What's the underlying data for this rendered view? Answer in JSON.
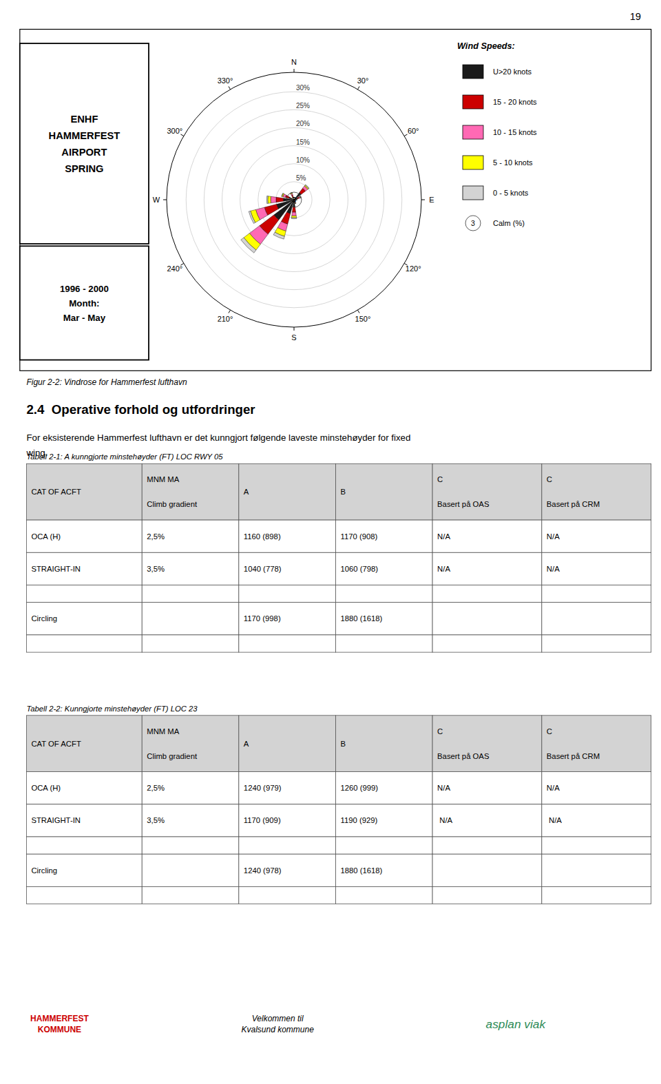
{
  "chart_data": {
    "type": "windrose",
    "title": "ENHF\nHAMMERFEST\nAIRPORT\nSPRING",
    "subtitle": "1996 - 2000\nMonth:\nMar - May",
    "x": [
      45,
      67.5,
      90,
      157.5,
      180,
      202.5,
      225,
      247.5,
      270,
      292.5,
      337.5
    ],
    "xlim": [
      0,
      360
    ],
    "xticks": [
      {
        "value": 0,
        "label": "N"
      },
      {
        "value": 30,
        "label": "30°"
      },
      {
        "value": 60,
        "label": "60°"
      },
      {
        "value": 90,
        "label": "E"
      },
      {
        "value": 120,
        "label": "120°"
      },
      {
        "value": 150,
        "label": "150°"
      },
      {
        "value": 180,
        "label": "S"
      },
      {
        "value": 210,
        "label": "210°"
      },
      {
        "value": 240,
        "label": "240°"
      },
      {
        "value": 270,
        "label": "W"
      },
      {
        "value": 300,
        "label": "300°"
      },
      {
        "value": 330,
        "label": "330°"
      }
    ],
    "ylim": [
      0,
      35.4
    ],
    "yticks": [
      {
        "value": 5,
        "label": "5%"
      },
      {
        "value": 10,
        "label": "10%"
      },
      {
        "value": 15,
        "label": "15%"
      },
      {
        "value": 20,
        "label": "20%"
      },
      {
        "value": 25,
        "label": "25%"
      },
      {
        "value": 30,
        "label": "30%"
      }
    ],
    "series": [
      {
        "name": "U>20 knots",
        "color": "#1a1a1a",
        "values": [
          2.5,
          1.0,
          0.4,
          0.5,
          2.0,
          4.0,
          7.0,
          5.0,
          3.0,
          1.5,
          0.8
        ]
      },
      {
        "name": "15 - 20 knots",
        "color": "#cc0000",
        "values": [
          1.5,
          0.5,
          0.2,
          0.3,
          1.5,
          3.0,
          5.0,
          3.5,
          2.0,
          1.0,
          0.6
        ]
      },
      {
        "name": "10 - 15 knots",
        "color": "#ff69b4",
        "values": [
          0.8,
          0.3,
          0.1,
          0.2,
          1.0,
          2.0,
          3.5,
          2.5,
          1.5,
          0.7,
          0.4
        ]
      },
      {
        "name": "5 - 10 knots",
        "color": "#ffff00",
        "values": [
          0.3,
          0.1,
          0.1,
          0.1,
          0.5,
          1.5,
          2.0,
          1.5,
          0.8,
          0.3,
          0.2
        ]
      },
      {
        "name": "0 - 5 knots",
        "color": "#d3d3d3",
        "values": [
          0.2,
          0.1,
          0.05,
          0.05,
          0.3,
          0.8,
          1.0,
          0.5,
          0.3,
          0.1,
          0.1
        ]
      }
    ],
    "stacked": true,
    "grid": true,
    "legend": "right",
    "legend_title": "Wind Speeds:",
    "calm": 3,
    "calm_label": "Calm (%)"
  },
  "page": {
    "page_number": "19",
    "fig_caption": "Figur 2-2: Vindrose for Hammerfest lufthavn",
    "section_title": "2.4  Operative forhold og utfordringer",
    "section_body": [
      "For eksisterende Hammerfest lufthavn er det kunngjort følgende laveste minstehøyder for fixed",
      "wing."
    ],
    "tables": [
      {
        "caption": "Tabell 2-1: A kunngjorte minstehøyder (FT) LOC RWY 05",
        "header": [
          "CAT OF ACFT",
          "MNM MA\nClimb gradient",
          "A",
          "B",
          "C\nBasert på OAS",
          "C\nBasert på CRM"
        ],
        "rows": [
          [
            "OCA (H)",
            "2,5%",
            "1160 (898)",
            "1170 (908)",
            "N/A",
            "N/A"
          ],
          [
            "STRAIGHT-IN",
            "3,5%",
            "1040 (778)",
            "1060 (798)",
            "N/A",
            "N/A"
          ],
          [
            "Circling",
            null,
            "1170 (998)",
            "1880 (1618)",
            null,
            null
          ]
        ],
        "header_bg": "#d3d3d3",
        "border_color": "#555555"
      },
      {
        "caption": "Tabell 2-2: Kunngjorte minstehøyder (FT) LOC 23",
        "header": [
          "CAT OF ACFT",
          "MNM MA\nClimb gradient",
          "A",
          "B",
          "C\nBasert på OAS",
          "C\nBasert på CRM"
        ],
        "rows": [
          [
            "OCA (H)",
            "2,5%",
            "1240 (979)",
            "1260 (999)",
            "N/A",
            "N/A"
          ],
          [
            "STRAIGHT-IN",
            "3,5%",
            "1170 (909)",
            "1190 (929)",
            " N/A",
            " N/A"
          ],
          [
            "Circling",
            null,
            "1240 (978)",
            "1880 (1618)",
            null,
            null
          ]
        ],
        "header_bg": "#d3d3d3",
        "border_color": "#555555"
      }
    ],
    "footer": [
      {
        "text": "HAMMERFEST\nKOMMUNE",
        "color": "#cc0000"
      },
      {
        "text": "Velkommen til\nKvalsund kommune",
        "color": "#000000"
      },
      {
        "text": "asplan viak",
        "color": "#2e8b57"
      }
    ]
  }
}
